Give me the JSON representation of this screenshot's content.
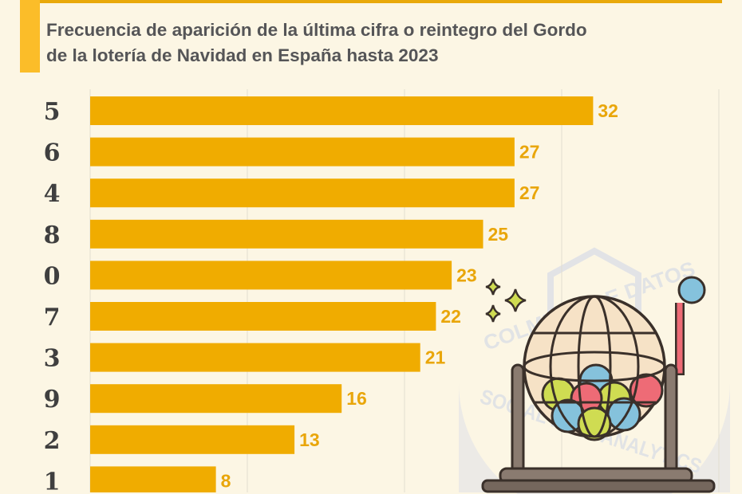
{
  "title_line1": "Frecuencia de aparición de la última cifra o reintegro del Gordo",
  "title_line2": "de la lotería de Navidad en España hasta 2023",
  "watermark": {
    "top": "COLMENA DE DATOS",
    "bottom": "SOCIAL DATA ANALYTICS"
  },
  "colors": {
    "bar": "#f0ac00",
    "value": "#e9a60a",
    "accent": "#fbbd29"
  },
  "chart_data": {
    "type": "bar",
    "orientation": "horizontal",
    "title": "Frecuencia de aparición de la última cifra o reintegro del Gordo de la lotería de Navidad en España hasta 2023",
    "categories": [
      "5",
      "6",
      "4",
      "8",
      "0",
      "7",
      "3",
      "9",
      "2",
      "1"
    ],
    "values": [
      32,
      27,
      27,
      25,
      23,
      22,
      21,
      16,
      13,
      8
    ],
    "xlim": [
      0,
      40
    ],
    "grid": true,
    "xlabel": "",
    "ylabel": ""
  }
}
